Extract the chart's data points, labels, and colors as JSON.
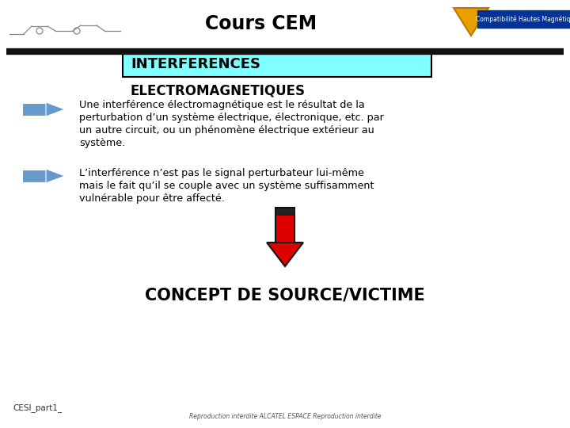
{
  "title": "Cours CEM",
  "background_color": "#ffffff",
  "header_line_color": "#111111",
  "subtitle_box_text": "INTERFERENCES",
  "subtitle_box_text2": "ELECTROMAGNETIQUES",
  "subtitle_box_bg": "#7fffff",
  "subtitle_box_border": "#000000",
  "para1_lines": [
    "Une interférence électromagnétique est le résultat de la",
    "perturbation d’un système électrique, électronique, etc. par",
    "un autre circuit, ou un phénomène électrique extérieur au",
    "système."
  ],
  "para2_lines": [
    "L’interférence n’est pas le signal perturbateur lui-même",
    "mais le fait qu’il se couple avec un système suffisamment",
    "vulnérable pour être affecté."
  ],
  "concept_text": "CONCEPT DE SOURCE/VICTIME",
  "footer_left": "CESI_part1_",
  "footer_right": "Reproduction interdite ALCATEL ESPACE Reproduction interdite",
  "arrow_blue_color": "#6699cc",
  "arrow_blue_light": "#aabbdd",
  "arrow_red_color": "#dd0000",
  "arrow_red_border": "#111111",
  "arrow_dark_stripe": "#222222"
}
